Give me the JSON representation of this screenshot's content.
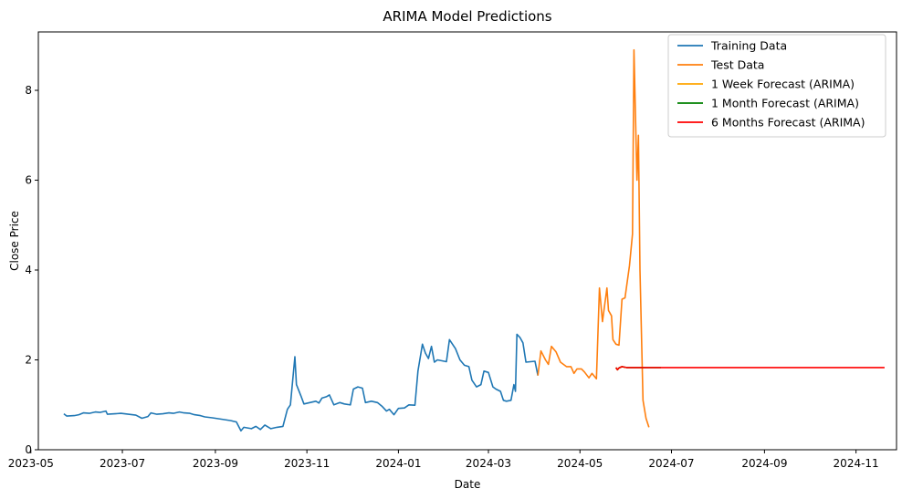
{
  "chart_data": {
    "type": "line",
    "title": "ARIMA Model Predictions",
    "xlabel": "Date",
    "ylabel": "Close Price",
    "xlim": [
      "2023-05-06",
      "2024-11-28"
    ],
    "ylim": [
      0,
      9.3
    ],
    "x_ticks": [
      "2023-05",
      "2023-07",
      "2023-09",
      "2023-11",
      "2024-01",
      "2024-03",
      "2024-05",
      "2024-07",
      "2024-09",
      "2024-11"
    ],
    "y_ticks": [
      0,
      2,
      4,
      6,
      8
    ],
    "grid": false,
    "legend_position": "top-right",
    "series": [
      {
        "name": "Training Data",
        "color": "#1f77b4",
        "points": [
          [
            "2023-05-23",
            0.8
          ],
          [
            "2023-05-25",
            0.75
          ],
          [
            "2023-05-30",
            0.76
          ],
          [
            "2023-06-02",
            0.78
          ],
          [
            "2023-06-05",
            0.82
          ],
          [
            "2023-06-09",
            0.81
          ],
          [
            "2023-06-13",
            0.84
          ],
          [
            "2023-06-16",
            0.83
          ],
          [
            "2023-06-20",
            0.86
          ],
          [
            "2023-06-21",
            0.79
          ],
          [
            "2023-06-26",
            0.8
          ],
          [
            "2023-06-30",
            0.81
          ],
          [
            "2023-07-05",
            0.79
          ],
          [
            "2023-07-10",
            0.77
          ],
          [
            "2023-07-14",
            0.7
          ],
          [
            "2023-07-18",
            0.74
          ],
          [
            "2023-07-20",
            0.82
          ],
          [
            "2023-07-24",
            0.79
          ],
          [
            "2023-07-28",
            0.8
          ],
          [
            "2023-08-01",
            0.82
          ],
          [
            "2023-08-04",
            0.81
          ],
          [
            "2023-08-08",
            0.84
          ],
          [
            "2023-08-11",
            0.82
          ],
          [
            "2023-08-15",
            0.81
          ],
          [
            "2023-08-18",
            0.78
          ],
          [
            "2023-08-22",
            0.76
          ],
          [
            "2023-08-25",
            0.73
          ],
          [
            "2023-08-30",
            0.71
          ],
          [
            "2023-09-05",
            0.68
          ],
          [
            "2023-09-11",
            0.65
          ],
          [
            "2023-09-15",
            0.62
          ],
          [
            "2023-09-18",
            0.42
          ],
          [
            "2023-09-20",
            0.5
          ],
          [
            "2023-09-25",
            0.47
          ],
          [
            "2023-09-28",
            0.52
          ],
          [
            "2023-10-01",
            0.45
          ],
          [
            "2023-10-04",
            0.55
          ],
          [
            "2023-10-08",
            0.47
          ],
          [
            "2023-10-12",
            0.5
          ],
          [
            "2023-10-16",
            0.52
          ],
          [
            "2023-10-19",
            0.9
          ],
          [
            "2023-10-21",
            1.0
          ],
          [
            "2023-10-24",
            2.07
          ],
          [
            "2023-10-25",
            1.45
          ],
          [
            "2023-10-28",
            1.2
          ],
          [
            "2023-10-30",
            1.02
          ],
          [
            "2023-11-03",
            1.05
          ],
          [
            "2023-11-07",
            1.08
          ],
          [
            "2023-11-09",
            1.04
          ],
          [
            "2023-11-11",
            1.15
          ],
          [
            "2023-11-14",
            1.18
          ],
          [
            "2023-11-16",
            1.22
          ],
          [
            "2023-11-19",
            1.0
          ],
          [
            "2023-11-23",
            1.05
          ],
          [
            "2023-11-26",
            1.02
          ],
          [
            "2023-11-30",
            1.0
          ],
          [
            "2023-12-02",
            1.35
          ],
          [
            "2023-12-05",
            1.4
          ],
          [
            "2023-12-08",
            1.37
          ],
          [
            "2023-12-10",
            1.05
          ],
          [
            "2023-12-14",
            1.08
          ],
          [
            "2023-12-18",
            1.05
          ],
          [
            "2023-12-21",
            0.97
          ],
          [
            "2023-12-24",
            0.86
          ],
          [
            "2023-12-26",
            0.9
          ],
          [
            "2023-12-29",
            0.78
          ],
          [
            "2024-01-01",
            0.92
          ],
          [
            "2024-01-05",
            0.93
          ],
          [
            "2024-01-08",
            1.0
          ],
          [
            "2024-01-12",
            0.99
          ],
          [
            "2024-01-14",
            1.75
          ],
          [
            "2024-01-17",
            2.35
          ],
          [
            "2024-01-19",
            2.15
          ],
          [
            "2024-01-21",
            2.03
          ],
          [
            "2024-01-23",
            2.3
          ],
          [
            "2024-01-25",
            1.95
          ],
          [
            "2024-01-27",
            2.0
          ],
          [
            "2024-01-30",
            1.98
          ],
          [
            "2024-02-02",
            1.96
          ],
          [
            "2024-02-04",
            2.45
          ],
          [
            "2024-02-08",
            2.25
          ],
          [
            "2024-02-11",
            2.0
          ],
          [
            "2024-02-14",
            1.88
          ],
          [
            "2024-02-17",
            1.85
          ],
          [
            "2024-02-19",
            1.55
          ],
          [
            "2024-02-22",
            1.4
          ],
          [
            "2024-02-25",
            1.45
          ],
          [
            "2024-02-27",
            1.75
          ],
          [
            "2024-03-01",
            1.72
          ],
          [
            "2024-03-04",
            1.4
          ],
          [
            "2024-03-06",
            1.35
          ],
          [
            "2024-03-09",
            1.3
          ],
          [
            "2024-03-11",
            1.1
          ],
          [
            "2024-03-13",
            1.08
          ],
          [
            "2024-03-16",
            1.1
          ],
          [
            "2024-03-18",
            1.45
          ],
          [
            "2024-03-19",
            1.3
          ],
          [
            "2024-03-20",
            2.57
          ],
          [
            "2024-03-22",
            2.5
          ],
          [
            "2024-03-24",
            2.38
          ],
          [
            "2024-03-26",
            1.95
          ],
          [
            "2024-03-29",
            1.96
          ],
          [
            "2024-04-01",
            1.97
          ],
          [
            "2024-04-03",
            1.65
          ]
        ]
      },
      {
        "name": "Test Data",
        "color": "#ff7f0e",
        "points": [
          [
            "2024-04-03",
            1.65
          ],
          [
            "2024-04-05",
            2.2
          ],
          [
            "2024-04-08",
            2.0
          ],
          [
            "2024-04-10",
            1.9
          ],
          [
            "2024-04-12",
            2.3
          ],
          [
            "2024-04-15",
            2.18
          ],
          [
            "2024-04-18",
            1.95
          ],
          [
            "2024-04-22",
            1.85
          ],
          [
            "2024-04-25",
            1.85
          ],
          [
            "2024-04-27",
            1.7
          ],
          [
            "2024-04-29",
            1.8
          ],
          [
            "2024-05-02",
            1.8
          ],
          [
            "2024-05-04",
            1.73
          ],
          [
            "2024-05-07",
            1.6
          ],
          [
            "2024-05-09",
            1.7
          ],
          [
            "2024-05-12",
            1.58
          ],
          [
            "2024-05-14",
            3.6
          ],
          [
            "2024-05-16",
            2.85
          ],
          [
            "2024-05-19",
            3.6
          ],
          [
            "2024-05-20",
            3.1
          ],
          [
            "2024-05-22",
            2.98
          ],
          [
            "2024-05-23",
            2.45
          ],
          [
            "2024-05-25",
            2.35
          ],
          [
            "2024-05-27",
            2.33
          ],
          [
            "2024-05-29",
            3.35
          ],
          [
            "2024-05-31",
            3.38
          ],
          [
            "2024-06-03",
            4.1
          ],
          [
            "2024-06-05",
            4.8
          ],
          [
            "2024-06-06",
            8.9
          ],
          [
            "2024-06-08",
            6.0
          ],
          [
            "2024-06-09",
            7.0
          ],
          [
            "2024-06-10",
            4.0
          ],
          [
            "2024-06-12",
            1.1
          ],
          [
            "2024-06-14",
            0.7
          ],
          [
            "2024-06-16",
            0.5
          ]
        ]
      },
      {
        "name": "1 Week Forecast (ARIMA)",
        "color": "#ffa500",
        "points": [
          [
            "2024-05-25",
            1.83
          ],
          [
            "2024-05-26",
            1.78
          ],
          [
            "2024-05-27",
            1.82
          ],
          [
            "2024-05-29",
            1.85
          ],
          [
            "2024-05-31",
            1.83
          ]
        ]
      },
      {
        "name": "1 Month Forecast (ARIMA)",
        "color": "#008000",
        "points": [
          [
            "2024-05-25",
            1.83
          ],
          [
            "2024-05-26",
            1.78
          ],
          [
            "2024-05-27",
            1.82
          ],
          [
            "2024-05-29",
            1.85
          ],
          [
            "2024-06-01",
            1.83
          ],
          [
            "2024-06-10",
            1.83
          ],
          [
            "2024-06-24",
            1.83
          ]
        ]
      },
      {
        "name": "6 Months Forecast (ARIMA)",
        "color": "#ff0000",
        "points": [
          [
            "2024-05-25",
            1.83
          ],
          [
            "2024-05-26",
            1.78
          ],
          [
            "2024-05-27",
            1.82
          ],
          [
            "2024-05-29",
            1.85
          ],
          [
            "2024-06-01",
            1.83
          ],
          [
            "2024-06-15",
            1.83
          ],
          [
            "2024-08-01",
            1.83
          ],
          [
            "2024-10-01",
            1.83
          ],
          [
            "2024-11-20",
            1.83
          ]
        ]
      }
    ]
  }
}
